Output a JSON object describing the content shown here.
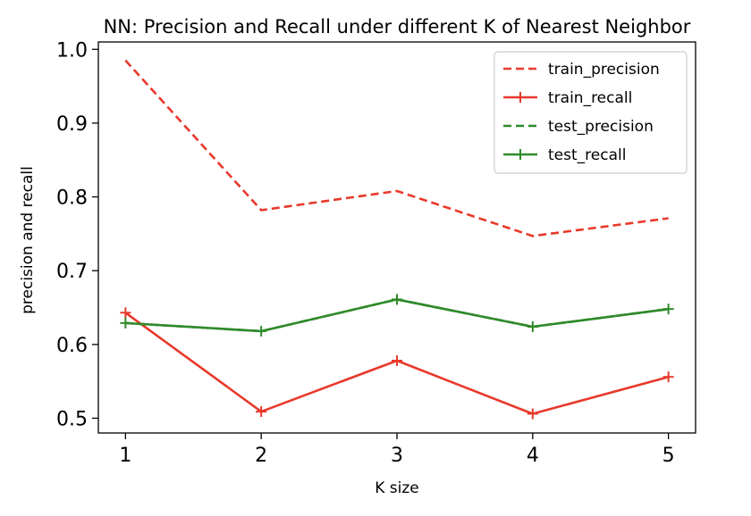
{
  "chart_data": {
    "type": "line",
    "title": "NN: Precision and Recall under different K of Nearest Neighbor",
    "xlabel": "K size",
    "ylabel": "precision and recall",
    "x": [
      1,
      2,
      3,
      4,
      5
    ],
    "xlim": [
      0.8,
      5.2
    ],
    "ylim": [
      0.48,
      1.01
    ],
    "xticks": [
      "1",
      "2",
      "3",
      "4",
      "5"
    ],
    "yticks": [
      "0.5",
      "0.6",
      "0.7",
      "0.8",
      "0.9",
      "1.0"
    ],
    "grid": false,
    "legend_position": "top-right",
    "series": [
      {
        "name": "train_precision",
        "values": [
          0.985,
          0.782,
          0.808,
          0.747,
          0.771
        ],
        "color": "#e8392b",
        "style": "dashed",
        "marker": "none"
      },
      {
        "name": "train_recall",
        "values": [
          0.643,
          0.509,
          0.578,
          0.506,
          0.556
        ],
        "color": "#e8392b",
        "style": "solid",
        "marker": "plus"
      },
      {
        "name": "test_precision",
        "values": [
          0.629,
          0.618,
          0.661,
          0.624,
          0.648
        ],
        "color": "#2f8a2a",
        "style": "dashed",
        "marker": "none"
      },
      {
        "name": "test_recall",
        "values": [
          0.629,
          0.618,
          0.661,
          0.624,
          0.648
        ],
        "color": "#2f8a2a",
        "style": "solid",
        "marker": "plus"
      }
    ]
  }
}
